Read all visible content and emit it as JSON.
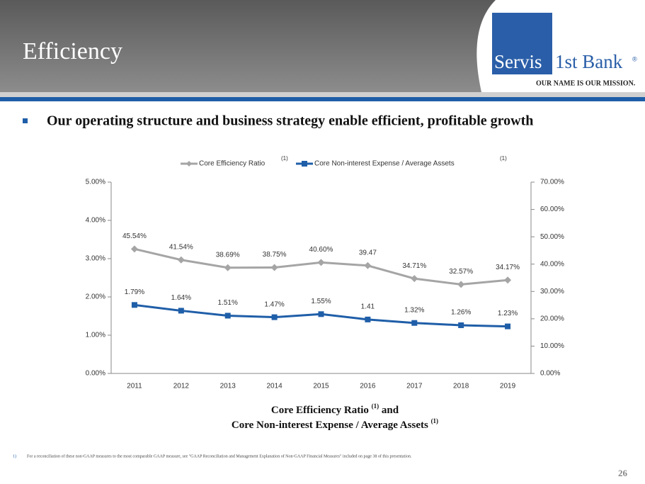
{
  "header": {
    "title": "Efficiency",
    "logo_left": "Servis",
    "logo_right": "1st Bank",
    "logo_mark": "®",
    "tagline": "OUR NAME IS OUR MISSION."
  },
  "bullet": "Our operating structure and business strategy enable efficient, profitable growth",
  "chart_data": {
    "type": "line",
    "categories": [
      "2011",
      "2012",
      "2013",
      "2014",
      "2015",
      "2016",
      "2017",
      "2018",
      "2019"
    ],
    "series": [
      {
        "name": "Core Efficiency Ratio",
        "note": "(1)",
        "color": "#a5a5a5",
        "marker": "diamond",
        "axis": "y2",
        "values": [
          45.54,
          41.54,
          38.69,
          38.75,
          40.6,
          39.47,
          34.71,
          32.57,
          34.17
        ],
        "value_labels": [
          "45.54%",
          "41.54%",
          "38.69%",
          "38.75%",
          "40.60%",
          "39.47",
          "34.71%",
          "32.57%",
          "34.17%"
        ]
      },
      {
        "name": "Core Non-interest Expense / Average Assets",
        "note": "(1)",
        "color": "#1f5ea8",
        "marker": "square",
        "values": [
          1.79,
          1.64,
          1.51,
          1.47,
          1.55,
          1.41,
          1.32,
          1.26,
          1.23
        ],
        "value_labels": [
          "1.79%",
          "1.64%",
          "1.51%",
          "1.47%",
          "1.55%",
          "1.41",
          "1.32%",
          "1.26%",
          "1.23%"
        ]
      }
    ],
    "ylim": [
      0,
      5
    ],
    "yticks": [
      {
        "value": 0,
        "label": "0.00%"
      },
      {
        "value": 1,
        "label": "1.00%"
      },
      {
        "value": 2,
        "label": "2.00%"
      },
      {
        "value": 3,
        "label": "3.00%"
      },
      {
        "value": 4,
        "label": "4.00%"
      },
      {
        "value": 5,
        "label": "5.00%"
      }
    ],
    "y2lim": [
      0,
      70
    ],
    "y2ticks": [
      {
        "value": 0,
        "label": "0.00%"
      },
      {
        "value": 10,
        "label": "10.00%"
      },
      {
        "value": 20,
        "label": "20.00%"
      },
      {
        "value": 30,
        "label": "30.00%"
      },
      {
        "value": 40,
        "label": "40.00%"
      },
      {
        "value": 50,
        "label": "50.00%"
      },
      {
        "value": 60,
        "label": "60.00%"
      },
      {
        "value": 70,
        "label": "70.00%"
      }
    ],
    "legend": "top",
    "caption": {
      "line1": "Core Efficiency Ratio",
      "note1": "(1)",
      "line1_end": "and",
      "line2": "Core Non-interest Expense / Average Assets",
      "note2": "(1)"
    }
  },
  "footnote": {
    "number": "1)",
    "text": "For a reconciliation of these non-GAAP measures to the most comparable GAAP measure, see \"GAAP Reconciliation and Management Explanation of Non-GAAP Financial Measures\" included on page 38 of this presentation."
  },
  "page_number": "26"
}
